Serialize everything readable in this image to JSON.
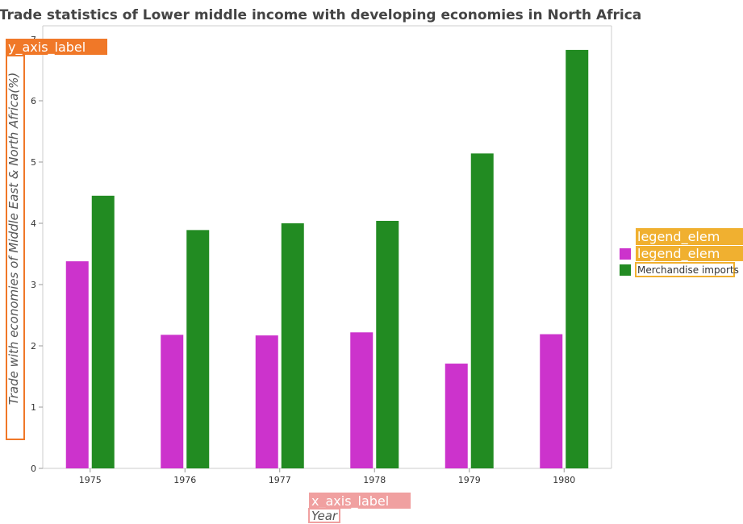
{
  "colors": {
    "series1": "#cc33cc",
    "series3": "#228b22",
    "overlay_orange": "#f07828",
    "overlay_pink": "#f0a0a0",
    "overlay_amber": "#f0b030"
  },
  "overlays": {
    "y_axis_label": "y_axis_label",
    "x_axis_label": "x_axis_label",
    "legend_elem_1": "legend_elem",
    "legend_elem_2": "legend_elem"
  },
  "chart_data": {
    "type": "bar",
    "title": "Trade statistics of Lower middle income with developing economies in North Africa",
    "xlabel": "Year",
    "ylabel": "Trade with economies of Middle East & North Africa(%)",
    "ylim": [
      0,
      7
    ],
    "yticks": [
      0,
      1,
      2,
      3,
      4,
      5,
      6,
      7
    ],
    "categories": [
      "1975",
      "1976",
      "1977",
      "1978",
      "1979",
      "1980"
    ],
    "series": [
      {
        "name": "",
        "color": "#cc33cc",
        "values": [
          3.38,
          2.18,
          2.17,
          2.22,
          1.71,
          2.19
        ]
      },
      {
        "name": "Merchandise imports",
        "color": "#228b22",
        "values": [
          4.45,
          3.89,
          4.0,
          4.04,
          5.14,
          6.83
        ]
      }
    ],
    "legend_position": "right",
    "grid": false
  }
}
